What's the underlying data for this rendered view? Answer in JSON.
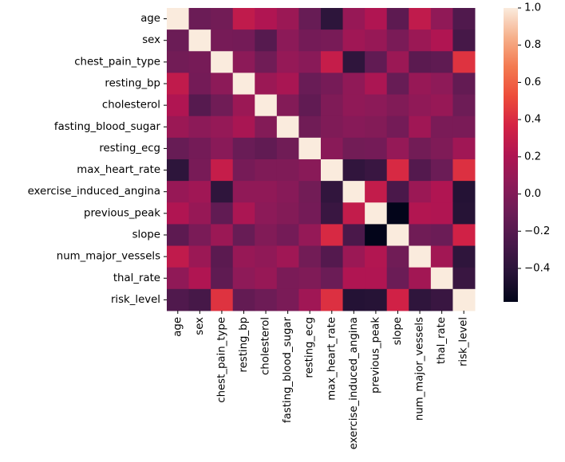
{
  "chart_data": {
    "type": "heatmap",
    "title": "",
    "xlabel": "",
    "ylabel": "",
    "labels": [
      "age",
      "sex",
      "chest_pain_type",
      "resting_bp",
      "cholesterol",
      "fasting_blood_sugar",
      "resting_ecg",
      "max_heart_rate",
      "exercise_induced_angina",
      "previous_peak",
      "slope",
      "num_major_vessels",
      "thal_rate",
      "risk_level"
    ],
    "matrix": [
      [
        1.0,
        -0.1,
        -0.07,
        0.28,
        0.21,
        0.12,
        -0.12,
        -0.4,
        0.1,
        0.21,
        -0.17,
        0.28,
        0.07,
        -0.23
      ],
      [
        -0.1,
        1.0,
        -0.05,
        -0.06,
        -0.2,
        0.05,
        -0.06,
        -0.04,
        0.14,
        0.1,
        -0.03,
        0.12,
        0.21,
        -0.28
      ],
      [
        -0.07,
        -0.05,
        1.0,
        0.05,
        -0.08,
        0.09,
        0.04,
        0.3,
        -0.39,
        -0.15,
        0.12,
        -0.18,
        -0.16,
        0.43
      ],
      [
        0.28,
        -0.06,
        0.05,
        1.0,
        0.12,
        0.18,
        -0.11,
        -0.05,
        0.07,
        0.19,
        -0.12,
        0.1,
        0.06,
        -0.14
      ],
      [
        0.21,
        -0.2,
        -0.08,
        0.12,
        1.0,
        0.01,
        -0.15,
        -0.01,
        0.07,
        0.05,
        -0.0,
        0.07,
        0.1,
        -0.09
      ],
      [
        0.12,
        0.05,
        0.09,
        0.18,
        0.01,
        1.0,
        -0.08,
        -0.01,
        0.03,
        0.01,
        -0.06,
        0.14,
        -0.03,
        -0.03
      ],
      [
        -0.12,
        -0.06,
        0.04,
        -0.11,
        -0.15,
        -0.08,
        1.0,
        0.04,
        -0.07,
        -0.06,
        0.09,
        -0.07,
        -0.01,
        0.14
      ],
      [
        -0.4,
        -0.04,
        0.3,
        -0.05,
        -0.01,
        -0.01,
        0.04,
        1.0,
        -0.38,
        -0.34,
        0.39,
        -0.21,
        -0.1,
        0.42
      ],
      [
        0.1,
        0.14,
        -0.39,
        0.07,
        0.07,
        0.03,
        -0.07,
        -0.38,
        1.0,
        0.29,
        -0.26,
        0.12,
        0.21,
        -0.44
      ],
      [
        0.21,
        0.1,
        -0.15,
        0.19,
        0.05,
        0.01,
        -0.06,
        -0.34,
        0.29,
        1.0,
        -0.58,
        0.22,
        0.21,
        -0.43
      ],
      [
        -0.17,
        -0.03,
        0.12,
        -0.12,
        -0.0,
        -0.06,
        0.09,
        0.39,
        -0.26,
        -0.58,
        1.0,
        -0.08,
        -0.1,
        0.35
      ],
      [
        0.28,
        0.12,
        -0.18,
        0.1,
        0.07,
        0.14,
        -0.07,
        -0.21,
        0.12,
        0.22,
        -0.08,
        1.0,
        0.15,
        -0.39
      ],
      [
        0.07,
        0.21,
        -0.16,
        0.06,
        0.1,
        -0.03,
        -0.01,
        -0.1,
        0.21,
        0.21,
        -0.1,
        0.15,
        1.0,
        -0.34
      ],
      [
        -0.23,
        -0.28,
        0.43,
        -0.14,
        -0.09,
        -0.03,
        0.14,
        0.42,
        -0.44,
        -0.43,
        0.35,
        -0.39,
        -0.34,
        1.0
      ]
    ],
    "colorbar": {
      "vmin": -0.58,
      "vmax": 1.0,
      "ticks": [
        1.0,
        0.8,
        0.6,
        0.4,
        0.2,
        0.0,
        -0.2,
        -0.4
      ],
      "tick_labels": [
        "1.0",
        "0.8",
        "0.6",
        "0.4",
        "0.2",
        "0.0",
        "−0.2",
        "−0.4"
      ],
      "colormap": "rocket"
    }
  }
}
